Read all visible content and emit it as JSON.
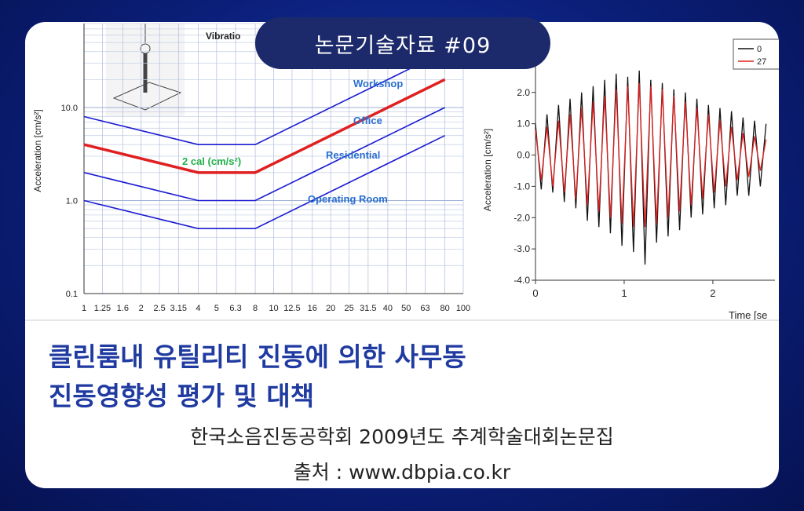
{
  "document": {
    "badge": "논문기술자료 #09",
    "title": [
      "클린룸내 유틸리티 진동에 의한 사무동",
      "진동영향성 평가 및 대책"
    ],
    "publication": "한국소음진동공학회 2009년도 추계학술대회논문집",
    "source": "출처 : www.dbpia.co.kr"
  },
  "chart_data": [
    {
      "type": "line",
      "title": "Vibratio",
      "y_label": "Acceleration [cm/s²]",
      "annotation": "2 cal (cm/s²)",
      "log_x": true,
      "log_y": true,
      "grid": true,
      "x": [
        1,
        4,
        8,
        80
      ],
      "series": [
        {
          "name": "Workshop",
          "color": "#1a1ad0",
          "values": [
            8,
            4,
            4,
            40
          ]
        },
        {
          "name": "Office",
          "color": "#e02020",
          "values": [
            4,
            2,
            2,
            20
          ]
        },
        {
          "name": "Residential",
          "color": "#1a1ad0",
          "values": [
            2,
            1,
            1,
            10
          ]
        },
        {
          "name": "Operating Room",
          "color": "#1a1ad0",
          "values": [
            1,
            0.5,
            0.5,
            5
          ]
        }
      ],
      "xlim": [
        1,
        100
      ],
      "xticks": [
        1,
        1.25,
        1.6,
        2,
        2.5,
        3.15,
        4,
        5,
        6.3,
        8,
        10,
        12.5,
        16,
        20,
        25,
        31.5,
        40,
        50,
        63,
        80,
        100
      ],
      "ylim": [
        0.1,
        80
      ],
      "yticks": [
        0.1,
        {
          "value": 1,
          "label": "1.0"
        },
        {
          "value": 10,
          "label": "10.0"
        }
      ]
    },
    {
      "type": "line",
      "x_label": "Time [se",
      "y_label": "Acceleration [cm/s²]",
      "x": [
        0,
        0.065,
        0.13,
        0.195,
        0.26,
        0.325,
        0.39,
        0.455,
        0.52,
        0.585,
        0.65,
        0.715,
        0.78,
        0.845,
        0.91,
        0.975,
        1.04,
        1.105,
        1.17,
        1.235,
        1.3,
        1.365,
        1.43,
        1.495,
        1.56,
        1.625,
        1.69,
        1.755,
        1.82,
        1.885,
        1.95,
        2.015,
        2.08,
        2.145,
        2.21,
        2.275,
        2.34,
        2.405,
        2.47,
        2.535,
        2.6
      ],
      "series": [
        {
          "name": "0",
          "color": "#111111",
          "values": [
            1.0,
            -1.1,
            1.3,
            -1.2,
            1.6,
            -1.5,
            1.8,
            -1.7,
            2.0,
            -2.1,
            2.2,
            -2.3,
            2.4,
            -2.5,
            2.6,
            -2.9,
            2.5,
            -3.1,
            2.7,
            -3.5,
            2.4,
            -2.8,
            2.3,
            -2.6,
            2.1,
            -2.4,
            2.0,
            -2.0,
            1.8,
            -1.9,
            1.6,
            -1.7,
            1.5,
            -1.6,
            1.4,
            -1.3,
            1.2,
            -1.3,
            1.1,
            -1.0,
            1.0
          ]
        },
        {
          "name": "27",
          "color": "#e02020",
          "values": [
            0.8,
            -0.8,
            0.9,
            -1.0,
            1.1,
            -1.2,
            1.3,
            -1.4,
            1.5,
            -1.6,
            1.7,
            -1.8,
            1.9,
            -2.0,
            2.1,
            -2.2,
            2.2,
            -2.3,
            2.3,
            -2.3,
            2.2,
            -2.2,
            2.1,
            -2.0,
            1.9,
            -1.8,
            1.7,
            -1.6,
            1.5,
            -1.4,
            1.3,
            -1.2,
            1.1,
            -1.0,
            0.9,
            -0.8,
            0.7,
            -0.7,
            0.6,
            -0.5,
            0.5
          ]
        }
      ],
      "xlim": [
        0,
        2.7
      ],
      "xticks": [
        0,
        1,
        2
      ],
      "ylim": [
        -4,
        3.8
      ],
      "yticks": [
        {
          "value": -4,
          "label": "-4.0"
        },
        {
          "value": -3,
          "label": "-3.0"
        },
        {
          "value": -2,
          "label": "-2.0"
        },
        {
          "value": -1,
          "label": "-1.0"
        },
        {
          "value": 0,
          "label": "0.0"
        },
        {
          "value": 1,
          "label": "1.0"
        },
        {
          "value": 2,
          "label": "2.0"
        }
      ]
    }
  ]
}
